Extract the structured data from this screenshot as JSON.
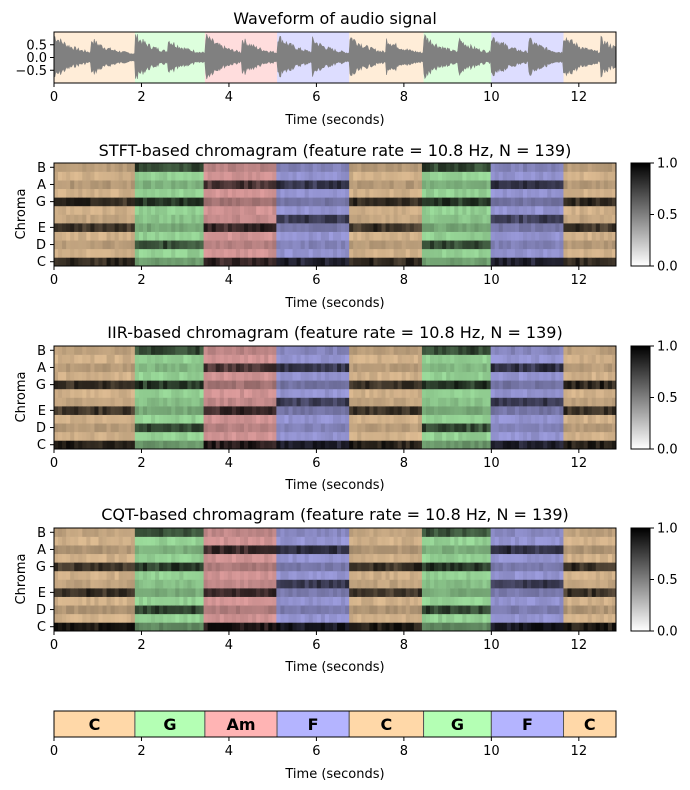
{
  "chart_data": [
    {
      "type": "waveform",
      "title": "Waveform of audio signal",
      "xlabel": "Time (seconds)",
      "ylabel": "",
      "xlim": [
        0,
        12.85
      ],
      "ylim": [
        -1.0,
        1.0
      ],
      "xticks": [
        0,
        2,
        4,
        6,
        8,
        10,
        12
      ],
      "xtick_labels": [
        "0",
        "2",
        "4",
        "6",
        "8",
        "10",
        "12"
      ],
      "yticks": [
        0.5,
        0.0,
        -0.5
      ],
      "ytick_labels": [
        "0.5",
        "0.0",
        "−0.5"
      ],
      "onsets": [
        0.0,
        0.85,
        1.85,
        2.6,
        3.45,
        4.3,
        5.1,
        5.9,
        6.75,
        7.6,
        8.45,
        9.25,
        10.0,
        10.85,
        11.65,
        12.5
      ],
      "series_color": "#808080"
    },
    {
      "type": "heatmap",
      "title": "STFT-based chromagram (feature rate = 10.8 Hz, N = 139)",
      "xlabel": "Time (seconds)",
      "ylabel": "Chroma",
      "xlim": [
        0,
        12.85
      ],
      "xticks": [
        0,
        2,
        4,
        6,
        8,
        10,
        12
      ],
      "xtick_labels": [
        "0",
        "2",
        "4",
        "6",
        "8",
        "10",
        "12"
      ],
      "yticks": [
        "C",
        "D",
        "E",
        "G",
        "A",
        "B"
      ],
      "colorbar": {
        "ticks": [
          "0.0",
          "0.5",
          "1.0"
        ],
        "range": [
          0,
          1
        ]
      },
      "chroma_energy": {
        "C": 0.6,
        "D": 0.3,
        "E": 0.5,
        "F": 0.15,
        "G": 0.55,
        "A": 0.35,
        "B": 0.3
      },
      "num_frames": 139
    },
    {
      "type": "heatmap",
      "title": "IIR-based chromagram (feature rate = 10.8 Hz, N = 139)",
      "xlabel": "Time (seconds)",
      "ylabel": "Chroma",
      "xlim": [
        0,
        12.85
      ],
      "xticks": [
        0,
        2,
        4,
        6,
        8,
        10,
        12
      ],
      "xtick_labels": [
        "0",
        "2",
        "4",
        "6",
        "8",
        "10",
        "12"
      ],
      "yticks": [
        "C",
        "D",
        "E",
        "G",
        "A",
        "B"
      ],
      "colorbar": {
        "ticks": [
          "0.0",
          "0.5",
          "1.0"
        ],
        "range": [
          0,
          1
        ]
      },
      "chroma_energy": {
        "C": 0.7,
        "D": 0.3,
        "E": 0.5,
        "F": 0.2,
        "G": 0.55,
        "A": 0.3,
        "B": 0.25
      },
      "num_frames": 139
    },
    {
      "type": "heatmap",
      "title": "CQT-based chromagram (feature rate = 10.8 Hz, N = 139)",
      "xlabel": "Time (seconds)",
      "ylabel": "Chroma",
      "xlim": [
        0,
        12.85
      ],
      "xticks": [
        0,
        2,
        4,
        6,
        8,
        10,
        12
      ],
      "xtick_labels": [
        "0",
        "2",
        "4",
        "6",
        "8",
        "10",
        "12"
      ],
      "yticks": [
        "C",
        "D",
        "E",
        "G",
        "A",
        "B"
      ],
      "colorbar": {
        "ticks": [
          "0.0",
          "0.5",
          "1.0"
        ],
        "range": [
          0,
          1
        ]
      },
      "chroma_energy": {
        "C": 0.85,
        "D": 0.4,
        "E": 0.45,
        "F": 0.2,
        "G": 0.45,
        "A": 0.4,
        "B": 0.2
      },
      "num_frames": 139
    },
    {
      "type": "segments",
      "title": "",
      "xlabel": "Time (seconds)",
      "xlim": [
        0,
        12.85
      ],
      "xticks": [
        0,
        2,
        4,
        6,
        8,
        10,
        12
      ],
      "xtick_labels": [
        "0",
        "2",
        "4",
        "6",
        "8",
        "10",
        "12"
      ],
      "segments": [
        {
          "label": "C",
          "start": 0.0,
          "end": 1.85,
          "color": "#ffd8a8"
        },
        {
          "label": "G",
          "start": 1.85,
          "end": 3.45,
          "color": "#b4ffb4"
        },
        {
          "label": "Am",
          "start": 3.45,
          "end": 5.1,
          "color": "#ffb4b4"
        },
        {
          "label": "F",
          "start": 5.1,
          "end": 6.75,
          "color": "#b4b4ff"
        },
        {
          "label": "C",
          "start": 6.75,
          "end": 8.45,
          "color": "#ffd8a8"
        },
        {
          "label": "G",
          "start": 8.45,
          "end": 10.0,
          "color": "#b4ffb4"
        },
        {
          "label": "F",
          "start": 10.0,
          "end": 11.65,
          "color": "#b4b4ff"
        },
        {
          "label": "C",
          "start": 11.65,
          "end": 12.85,
          "color": "#ffd8a8"
        }
      ]
    }
  ]
}
